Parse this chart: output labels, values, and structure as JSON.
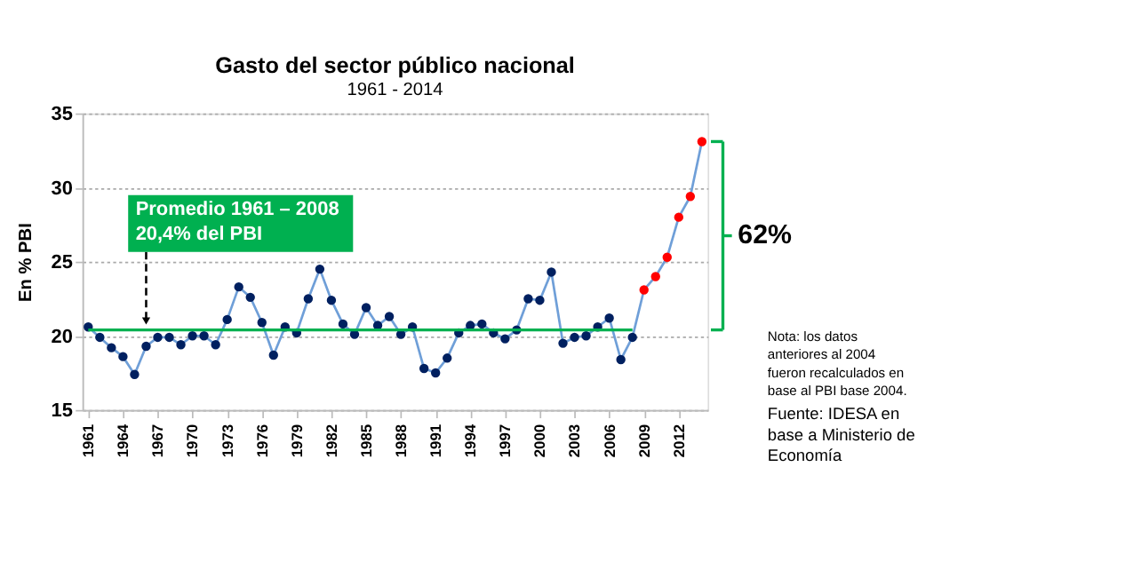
{
  "chart_data": {
    "type": "line",
    "title": "Gasto del sector público nacional",
    "subtitle": "1961 - 2014",
    "ylabel": "En % PBI",
    "x": [
      1961,
      1962,
      1963,
      1964,
      1965,
      1966,
      1967,
      1968,
      1969,
      1970,
      1971,
      1972,
      1973,
      1974,
      1975,
      1976,
      1977,
      1978,
      1979,
      1980,
      1981,
      1982,
      1983,
      1984,
      1985,
      1986,
      1987,
      1988,
      1989,
      1990,
      1991,
      1992,
      1993,
      1994,
      1995,
      1996,
      1997,
      1998,
      1999,
      2000,
      2001,
      2002,
      2003,
      2004,
      2005,
      2006,
      2007,
      2008,
      2009,
      2010,
      2011,
      2012,
      2013,
      2014
    ],
    "series": [
      {
        "color": "#6f9fd8",
        "marker": "circle",
        "line_style": "solid",
        "values": [
          20.6,
          19.9,
          19.2,
          18.6,
          17.4,
          19.3,
          19.9,
          19.9,
          19.4,
          20.0,
          20.0,
          19.4,
          21.1,
          23.3,
          22.6,
          20.9,
          18.7,
          20.6,
          20.2,
          22.5,
          24.5,
          22.4,
          20.8,
          20.1,
          21.9,
          20.7,
          21.3,
          20.1,
          20.6,
          17.8,
          17.5,
          18.5,
          20.2,
          20.7,
          20.8,
          20.2,
          19.8,
          20.4,
          22.5,
          22.4,
          24.3,
          19.5,
          19.9,
          20.0,
          20.6,
          21.2,
          18.4,
          19.9,
          23.1,
          24.0,
          25.3,
          28.0,
          29.4,
          33.1
        ],
        "colors": [
          "#002060",
          "#002060",
          "#002060",
          "#002060",
          "#002060",
          "#002060",
          "#002060",
          "#002060",
          "#002060",
          "#002060",
          "#002060",
          "#002060",
          "#002060",
          "#002060",
          "#002060",
          "#002060",
          "#002060",
          "#002060",
          "#002060",
          "#002060",
          "#002060",
          "#002060",
          "#002060",
          "#002060",
          "#002060",
          "#002060",
          "#002060",
          "#002060",
          "#002060",
          "#002060",
          "#002060",
          "#002060",
          "#002060",
          "#002060",
          "#002060",
          "#002060",
          "#002060",
          "#002060",
          "#002060",
          "#002060",
          "#002060",
          "#002060",
          "#002060",
          "#002060",
          "#002060",
          "#002060",
          "#002060",
          "#002060",
          "#ff0000",
          "#ff0000",
          "#ff0000",
          "#ff0000",
          "#ff0000",
          "#ff0000"
        ]
      },
      {
        "color": "#00b050",
        "marker": "none",
        "line_style": "solid",
        "x": [
          1961,
          2008
        ],
        "values": [
          20.4,
          20.4
        ]
      }
    ],
    "xlim": [
      1960.5,
      2014.5
    ],
    "xticks": [
      1961,
      1964,
      1967,
      1970,
      1973,
      1976,
      1979,
      1982,
      1985,
      1988,
      1991,
      1994,
      1997,
      2000,
      2003,
      2006,
      2009,
      2012
    ],
    "ylim": [
      15,
      35
    ],
    "yticks": [
      15,
      20,
      25,
      30,
      35
    ],
    "grid": "y",
    "annotations": [
      {
        "text": "Promedio 1961 – 2008\n20,4% del PBI",
        "x": 1966,
        "y": 20.4
      },
      "62%",
      "Nota: los datos\nanteriores al 2004\nfueron recalculados en\nbase al PBI base 2004.",
      "Fuente: IDESA en\nbase a Ministerio de\nEconomía"
    ]
  }
}
